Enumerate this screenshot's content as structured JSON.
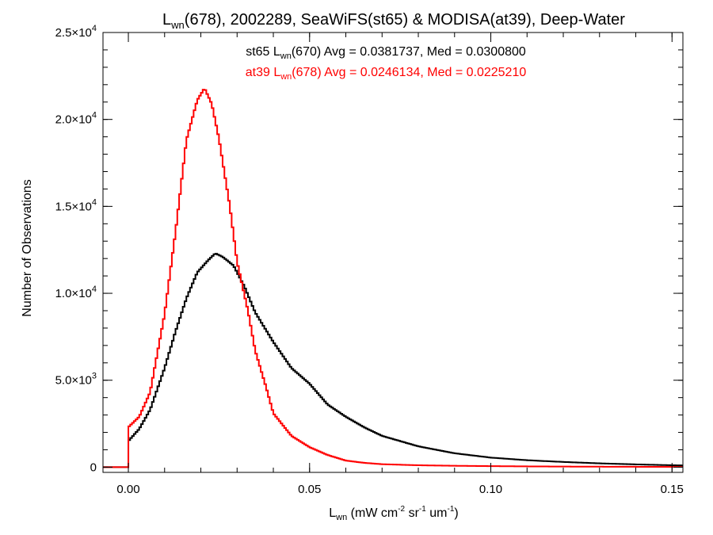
{
  "chart_data": {
    "type": "line",
    "step": true,
    "title": {
      "main": "L",
      "main_sub": "wn",
      "rest": "(678), 2002289, SeaWiFS(st65) & MODISA(at39), Deep-Water"
    },
    "xlabel": {
      "main": "L",
      "main_sub": "wn",
      "p1": " (mW cm",
      "e1": "-2",
      "p2": " sr",
      "e2": "-1",
      "p3": " um",
      "e3": "-1",
      "p4": ")"
    },
    "ylabel": "Number of Observations",
    "xlim": [
      -0.007,
      0.153
    ],
    "ylim": [
      -300,
      25000
    ],
    "x_ticks": [
      {
        "value": 0.0,
        "label": "0.00"
      },
      {
        "value": 0.05,
        "label": "0.05"
      },
      {
        "value": 0.1,
        "label": "0.10"
      },
      {
        "value": 0.15,
        "label": "0.15"
      }
    ],
    "x_minor_step": 0.01,
    "y_ticks": [
      {
        "value": 0,
        "mant": "0",
        "exp": ""
      },
      {
        "value": 5000,
        "mant": "5.0×10",
        "exp": "3"
      },
      {
        "value": 10000,
        "mant": "1.0×10",
        "exp": "4"
      },
      {
        "value": 15000,
        "mant": "1.5×10",
        "exp": "4"
      },
      {
        "value": 20000,
        "mant": "2.0×10",
        "exp": "4"
      },
      {
        "value": 25000,
        "mant": "2.5×10",
        "exp": "4"
      }
    ],
    "y_minor_step": 1000,
    "legend": [
      {
        "pre": "st65 L",
        "sub": "wn",
        "post": "(670) Avg = 0.0381737, Med = 0.0300800",
        "color": "#000000"
      },
      {
        "pre": "at39 L",
        "sub": "wn",
        "post": "(678) Avg = 0.0246134, Med = 0.0225210",
        "color": "#ff0000"
      }
    ],
    "bin_width": 0.0005,
    "series": [
      {
        "color": "#000000",
        "x": [
          0.0,
          0.003,
          0.006,
          0.01,
          0.013,
          0.016,
          0.019,
          0.022,
          0.024,
          0.026,
          0.029,
          0.032,
          0.035,
          0.04,
          0.045,
          0.05,
          0.055,
          0.06,
          0.065,
          0.07,
          0.08,
          0.09,
          0.1,
          0.11,
          0.12,
          0.13,
          0.14,
          0.15,
          0.153
        ],
        "values": [
          1500,
          2200,
          3300,
          5700,
          7800,
          9700,
          11200,
          11900,
          12300,
          12100,
          11600,
          10400,
          8900,
          7200,
          5700,
          4800,
          3600,
          2900,
          2300,
          1800,
          1200,
          800,
          550,
          400,
          300,
          220,
          160,
          110,
          100
        ]
      },
      {
        "color": "#ff0000",
        "x": [
          0.0,
          0.003,
          0.006,
          0.01,
          0.013,
          0.016,
          0.019,
          0.021,
          0.023,
          0.025,
          0.028,
          0.03,
          0.033,
          0.035,
          0.038,
          0.04,
          0.045,
          0.05,
          0.055,
          0.06,
          0.065,
          0.07,
          0.08,
          0.09,
          0.1,
          0.11,
          0.12,
          0.13,
          0.14,
          0.15,
          0.153
        ],
        "values": [
          2300,
          2900,
          4300,
          8800,
          13500,
          18800,
          21100,
          21800,
          20900,
          18900,
          15000,
          11800,
          9000,
          6700,
          4600,
          3100,
          1800,
          1150,
          700,
          380,
          250,
          170,
          110,
          80,
          60,
          45,
          35,
          28,
          22,
          18,
          16
        ]
      }
    ]
  }
}
